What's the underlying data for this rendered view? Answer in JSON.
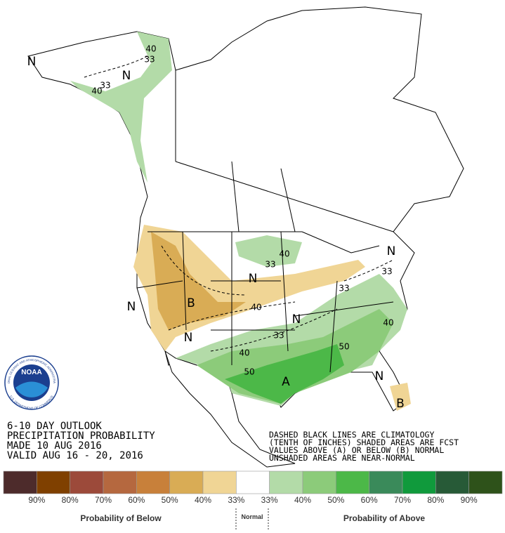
{
  "header": {
    "lines": [
      "6-10 DAY OUTLOOK",
      "PRECIPITATION PROBABILITY",
      "MADE  10 AUG 2016",
      "VALID  AUG 16 - 20, 2016"
    ]
  },
  "notes": {
    "lines": [
      "DASHED BLACK LINES ARE CLIMATOLOGY",
      "(TENTH OF INCHES) SHADED AREAS ARE FCST",
      "VALUES ABOVE (A) OR BELOW (B) NORMAL",
      "UNSHADED AREAS ARE NEAR-NORMAL"
    ]
  },
  "logo": {
    "name": "NOAA",
    "ring_top": "NATIONAL OCEANIC AND ATMOSPHERIC ADMINISTRATION",
    "ring_bottom": "U.S. DEPARTMENT OF COMMERCE"
  },
  "map_labels": [
    "N",
    "N",
    "40",
    "33",
    "33",
    "40",
    "40",
    "33",
    "N",
    "33",
    "33",
    "N",
    "B",
    "40",
    "N",
    "N",
    "33",
    "N",
    "40",
    "50",
    "40",
    "50",
    "A",
    "N",
    "B"
  ],
  "legend": {
    "colors": [
      "#4d2b2b",
      "#7f4000",
      "#9c4a3a",
      "#b5683f",
      "#c8803a",
      "#d9ac55",
      "#f0d595",
      "#ffffff",
      "#b3dba8",
      "#8ccb7a",
      "#4cb848",
      "#3a8a5a",
      "#109a3c",
      "#275a37",
      "#2e521a"
    ],
    "labels": [
      "90%",
      "80%",
      "70%",
      "60%",
      "50%",
      "40%",
      "33%",
      "33%",
      "40%",
      "50%",
      "60%",
      "70%",
      "80%",
      "90%"
    ],
    "below": "Probability of Below",
    "normal": "Normal",
    "above": "Probability of Above"
  }
}
